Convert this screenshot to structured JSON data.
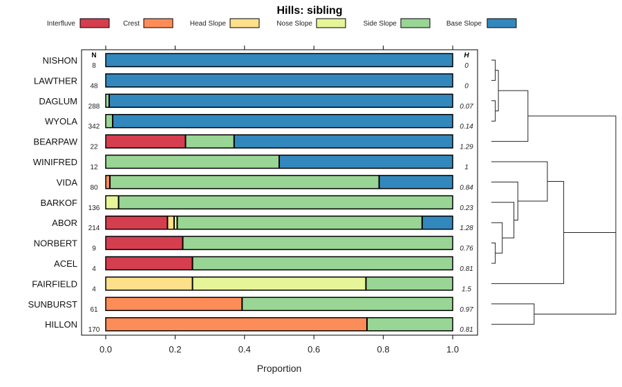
{
  "chart_data": {
    "type": "bar",
    "orientation": "horizontal",
    "stacked": true,
    "title": "Hills: sibling",
    "xlabel": "Proportion",
    "xlim": [
      0,
      1
    ],
    "x_ticks": [
      "0.0",
      "0.2",
      "0.4",
      "0.6",
      "0.8",
      "1.0"
    ],
    "n_header": "N",
    "h_header": "H",
    "series_names": [
      "Interfluve",
      "Crest",
      "Head Slope",
      "Nose Slope",
      "Side Slope",
      "Base Slope"
    ],
    "series_colors": [
      "#D53E4F",
      "#FC8D59",
      "#FEE08B",
      "#E6F598",
      "#99D594",
      "#3288BD"
    ],
    "rows": [
      {
        "label": "NISHON",
        "n": "8",
        "h": "0",
        "values": [
          0,
          0,
          0,
          0,
          0,
          1
        ]
      },
      {
        "label": "LAWTHER",
        "n": "48",
        "h": "0",
        "values": [
          0,
          0,
          0,
          0,
          0,
          1
        ]
      },
      {
        "label": "DAGLUM",
        "n": "288",
        "h": "0.07",
        "values": [
          0,
          0,
          0,
          0,
          0.01,
          0.99
        ]
      },
      {
        "label": "WYOLA",
        "n": "342",
        "h": "0.14",
        "values": [
          0,
          0,
          0,
          0,
          0.02,
          0.98
        ]
      },
      {
        "label": "BEARPAW",
        "n": "22",
        "h": "1.29",
        "values": [
          0.23,
          0,
          0,
          0,
          0.14,
          0.63
        ]
      },
      {
        "label": "WINIFRED",
        "n": "12",
        "h": "1",
        "values": [
          0,
          0,
          0,
          0,
          0.5,
          0.5
        ]
      },
      {
        "label": "VIDA",
        "n": "80",
        "h": "0.84",
        "values": [
          0,
          0.012,
          0,
          0,
          0.776,
          0.212
        ]
      },
      {
        "label": "BARKOF",
        "n": "136",
        "h": "0.23",
        "values": [
          0,
          0,
          0,
          0.037,
          0.963,
          0
        ]
      },
      {
        "label": "ABOR",
        "n": "214",
        "h": "1.28",
        "values": [
          0.178,
          0,
          0.019,
          0.009,
          0.706,
          0.088
        ]
      },
      {
        "label": "NORBERT",
        "n": "9",
        "h": "0.76",
        "values": [
          0.222,
          0,
          0,
          0,
          0.778,
          0
        ]
      },
      {
        "label": "ACEL",
        "n": "4",
        "h": "0.81",
        "values": [
          0.25,
          0,
          0,
          0,
          0.75,
          0
        ]
      },
      {
        "label": "FAIRFIELD",
        "n": "4",
        "h": "1.5",
        "values": [
          0,
          0,
          0.25,
          0.5,
          0.25,
          0
        ]
      },
      {
        "label": "SUNBURST",
        "n": "61",
        "h": "0.97",
        "values": [
          0,
          0.393,
          0,
          0,
          0.607,
          0
        ]
      },
      {
        "label": "HILLON",
        "n": "170",
        "h": "0.81",
        "values": [
          0,
          0.753,
          0,
          0,
          0.247,
          0
        ]
      }
    ],
    "dendrogram": [
      [
        0,
        1,
        0.05
      ],
      [
        2,
        3,
        0.05
      ],
      [
        14,
        15,
        0.09
      ],
      [
        16,
        4,
        0.47
      ],
      [
        9,
        10,
        0.05
      ],
      [
        18,
        8,
        0.14
      ],
      [
        7,
        19,
        0.29
      ],
      [
        6,
        20,
        0.34
      ],
      [
        21,
        5,
        0.72
      ],
      [
        22,
        11,
        0.93
      ],
      [
        12,
        13,
        0.55
      ],
      [
        23,
        24,
        1.6
      ],
      [
        17,
        25,
        1.6
      ]
    ],
    "dendrogram_max": 1.6
  }
}
